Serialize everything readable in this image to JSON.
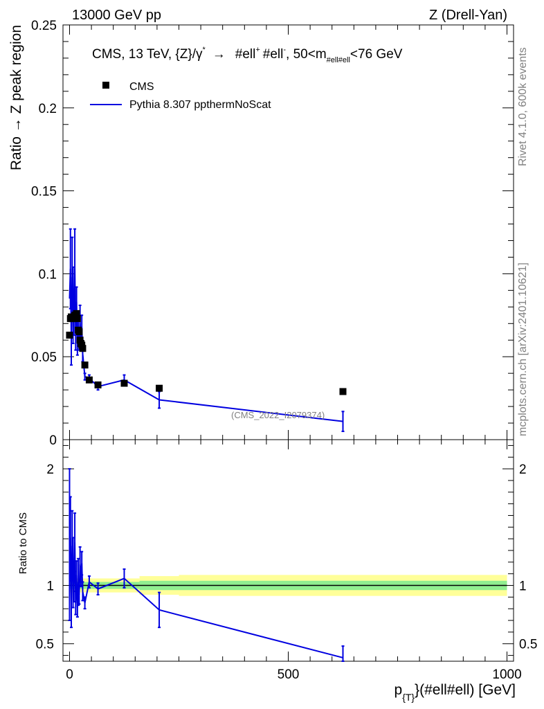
{
  "header": {
    "left": "13000 GeV pp",
    "right": "Z (Drell-Yan)"
  },
  "side_labels": {
    "rivet": "Rivet 4.1.0,  600k events",
    "mcplots": "mcplots.cern.ch [arXiv:2401.10621]"
  },
  "watermark": "(CMS_2022_I2079374)",
  "legend": {
    "title_prefix": "CMS, 13 TeV, {Z}/γ",
    "title_star": "*",
    "title_arrow": "→",
    "title_ell1": "#ell",
    "title_plus": "+",
    "title_ell2": "#ell",
    "title_minus": "-",
    "title_range": ", 50<m",
    "title_sub": "#ell#ell",
    "title_end": "<76 GeV",
    "data_label": "CMS",
    "mc_label": "Pythia 8.307 ppthermNoScat"
  },
  "colors": {
    "mc": "#0000e0",
    "data": "#000000",
    "band_inner": "#90ee90",
    "band_outer": "#ffff99",
    "side_text": "#808080"
  },
  "chart_data": {
    "type": "scatter",
    "xlabel_main": "p",
    "xlabel_sub": "{T}",
    "xlabel_rest": "}(#ell#ell) [GeV]",
    "ylabel": "Ratio → Z peak region",
    "ratio_ylabel": "Ratio to CMS",
    "xlim": [
      -15,
      1015
    ],
    "ylim": [
      0,
      0.25
    ],
    "ratio_ylim": [
      0.35,
      2.25
    ],
    "x_ticks": [
      0,
      500,
      1000
    ],
    "x_tick_labels": [
      "0",
      "500",
      "1000"
    ],
    "y_ticks": [
      0,
      0.05,
      0.1,
      0.15,
      0.2,
      0.25
    ],
    "y_tick_labels": [
      "0",
      "0.05",
      "0.1",
      "0.15",
      "0.2",
      "0.25"
    ],
    "ratio_ticks": [
      0.5,
      1,
      2
    ],
    "ratio_tick_labels": [
      "0.5",
      "1",
      "2"
    ],
    "series": [
      {
        "name": "CMS",
        "x": [
          0,
          2,
          4,
          6,
          8,
          10,
          12,
          14,
          16,
          18,
          20,
          22,
          24,
          26,
          28,
          30,
          35,
          45,
          65,
          125,
          205,
          625
        ],
        "y": [
          0.063,
          0.073,
          0.074,
          0.073,
          0.073,
          0.074,
          0.075,
          0.075,
          0.076,
          0.073,
          0.066,
          0.065,
          0.06,
          0.058,
          0.057,
          0.055,
          0.045,
          0.036,
          0.033,
          0.034,
          0.031,
          0.029
        ]
      },
      {
        "name": "Pythia 8.307 ppthermNoScat",
        "x": [
          0,
          2,
          4,
          6,
          8,
          10,
          12,
          14,
          16,
          18,
          20,
          22,
          24,
          26,
          28,
          30,
          35,
          45,
          65,
          125,
          205,
          625
        ],
        "y": [
          0.085,
          0.103,
          0.062,
          0.098,
          0.081,
          0.075,
          0.103,
          0.064,
          0.083,
          0.059,
          0.068,
          0.06,
          0.071,
          0.062,
          0.068,
          0.052,
          0.038,
          0.037,
          0.032,
          0.036,
          0.024,
          0.011
        ],
        "yerr": [
          0.0,
          0.024,
          0.017,
          0.024,
          0.023,
          0.012,
          0.024,
          0.01,
          0.009,
          0.008,
          0.008,
          0.006,
          0.01,
          0.005,
          0.007,
          0.005,
          0.002,
          0.002,
          0.002,
          0.003,
          0.005,
          0.006
        ]
      }
    ],
    "ratio": {
      "x": [
        0,
        2,
        4,
        6,
        8,
        10,
        12,
        14,
        16,
        18,
        20,
        22,
        24,
        26,
        28,
        30,
        35,
        45,
        65,
        125,
        205,
        625
      ],
      "y": [
        1.35,
        1.41,
        0.84,
        1.34,
        1.11,
        1.01,
        1.37,
        0.85,
        1.09,
        0.81,
        1.03,
        0.92,
        1.18,
        1.07,
        1.19,
        0.95,
        0.85,
        1.03,
        0.97,
        1.06,
        0.79,
        0.38
      ],
      "yerr": [
        0.65,
        0.35,
        0.2,
        0.3,
        0.3,
        0.15,
        0.25,
        0.1,
        0.12,
        0.08,
        0.2,
        0.08,
        0.15,
        0.08,
        0.1,
        0.08,
        0.05,
        0.05,
        0.05,
        0.08,
        0.15,
        0.1
      ]
    },
    "band": {
      "x_edges": [
        0,
        160,
        250,
        1000
      ],
      "inner_half": [
        0.03,
        0.04,
        0.04
      ],
      "outer_half": [
        0.06,
        0.08,
        0.09
      ]
    }
  }
}
